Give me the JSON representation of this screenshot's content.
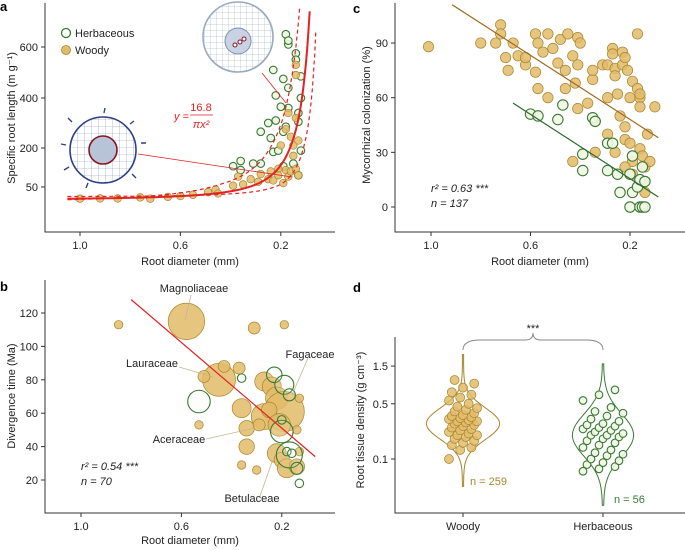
{
  "colors": {
    "woody_fill": "#e2bb68",
    "woody_stroke": "#a8852e",
    "herb_stroke": "#3a7a33",
    "herb_fill": "#f1f7e6",
    "fit_red": "#e32222",
    "woody_line": "#a0661a",
    "herb_line": "#2d6a28",
    "bracket": "#888888"
  },
  "chart_data": [
    {
      "panel": "a",
      "type": "scatter",
      "xlabel": "Root diameter (mm)",
      "ylabel": "Specific root length (m g⁻¹)",
      "x_ticks": [
        "1.0",
        "0.6",
        "0.2"
      ],
      "y_ticks": [
        "50",
        "200",
        "400",
        "600"
      ],
      "x_reversed": true,
      "legend": {
        "position": "top-left",
        "entries": [
          "Herbaceous",
          "Woody"
        ]
      },
      "equation": {
        "lhs": "y =",
        "numerator": "16.8",
        "denominator": "πx²"
      },
      "series": [
        {
          "name": "Herbaceous",
          "points": [
            [
              0.18,
              650
            ],
            [
              0.17,
              610
            ],
            [
              0.17,
              625
            ],
            [
              0.14,
              575
            ],
            [
              0.14,
              550
            ],
            [
              0.23,
              510
            ],
            [
              0.19,
              475
            ],
            [
              0.12,
              485
            ],
            [
              0.17,
              440
            ],
            [
              0.22,
              410
            ],
            [
              0.12,
              400
            ],
            [
              0.2,
              365
            ],
            [
              0.17,
              360
            ],
            [
              0.13,
              340
            ],
            [
              0.25,
              300
            ],
            [
              0.22,
              310
            ],
            [
              0.18,
              285
            ],
            [
              0.13,
              305
            ],
            [
              0.28,
              265
            ],
            [
              0.24,
              240
            ],
            [
              0.19,
              265
            ],
            [
              0.23,
              185
            ],
            [
              0.21,
              190
            ],
            [
              0.12,
              190
            ],
            [
              0.36,
              150
            ],
            [
              0.39,
              130
            ],
            [
              0.31,
              140
            ],
            [
              0.28,
              140
            ],
            [
              0.19,
              130
            ],
            [
              0.13,
              95
            ],
            [
              0.15,
              140
            ],
            [
              0.36,
              115
            ]
          ]
        },
        {
          "name": "Woody",
          "points": [
            [
              1.0,
              5
            ],
            [
              0.92,
              6
            ],
            [
              0.85,
              6
            ],
            [
              0.76,
              10
            ],
            [
              0.72,
              5
            ],
            [
              0.65,
              12
            ],
            [
              0.6,
              15
            ],
            [
              0.55,
              20
            ],
            [
              0.49,
              30
            ],
            [
              0.46,
              40
            ],
            [
              0.45,
              25
            ],
            [
              0.39,
              55
            ],
            [
              0.37,
              90
            ],
            [
              0.35,
              60
            ],
            [
              0.32,
              80
            ],
            [
              0.29,
              70
            ],
            [
              0.28,
              100
            ],
            [
              0.25,
              80
            ],
            [
              0.24,
              110
            ],
            [
              0.23,
              75
            ],
            [
              0.21,
              120
            ],
            [
              0.21,
              95
            ],
            [
              0.19,
              65
            ],
            [
              0.18,
              115
            ],
            [
              0.17,
              90
            ],
            [
              0.16,
              110
            ],
            [
              0.15,
              170
            ],
            [
              0.15,
              210
            ],
            [
              0.14,
              530
            ],
            [
              0.14,
              490
            ],
            [
              0.13,
              230
            ],
            [
              0.16,
              245
            ],
            [
              0.18,
              275
            ],
            [
              0.2,
              210
            ],
            [
              0.14,
              320
            ],
            [
              0.14,
              120
            ],
            [
              0.13,
              95
            ],
            [
              0.17,
              340
            ]
          ]
        }
      ]
    },
    {
      "panel": "b",
      "type": "scatter",
      "xlabel": "Root diameter (mm)",
      "ylabel": "Divergence time (Ma)",
      "x_ticks": [
        "1.0",
        "0.6",
        "0.2"
      ],
      "y_ticks": [
        "20",
        "40",
        "60",
        "80",
        "100",
        "120"
      ],
      "x_reversed": true,
      "stats": {
        "r2": "r² = 0.54 ***",
        "n": "n = 70"
      },
      "fit": {
        "from": [
          0.8,
          128
        ],
        "to": [
          0.067,
          34
        ]
      },
      "families": [
        "Magnoliaceae",
        "Lauraceae",
        "Fagaceae",
        "Aceraceae",
        "Betulaceae"
      ],
      "series": [
        {
          "name": "Woody",
          "points": [
            [
              0.85,
              113,
              1
            ],
            [
              0.58,
              115,
              9
            ],
            [
              0.31,
              111,
              2
            ],
            [
              0.19,
              113,
              1
            ],
            [
              0.45,
              80,
              8
            ],
            [
              0.43,
              88,
              2
            ],
            [
              0.37,
              87,
              2
            ],
            [
              0.51,
              82,
              2
            ],
            [
              0.36,
              63,
              4
            ],
            [
              0.27,
              79,
              4
            ],
            [
              0.24,
              76,
              4
            ],
            [
              0.22,
              69,
              5
            ],
            [
              0.19,
              61,
              10
            ],
            [
              0.27,
              58,
              6
            ],
            [
              0.25,
              62,
              3
            ],
            [
              0.13,
              69,
              1
            ],
            [
              0.53,
              53,
              1
            ],
            [
              0.34,
              51,
              3
            ],
            [
              0.34,
              40,
              3
            ],
            [
              0.29,
              53,
              2
            ],
            [
              0.14,
              50,
              1
            ],
            [
              0.22,
              36,
              4
            ],
            [
              0.2,
              32,
              3
            ],
            [
              0.18,
              27,
              4
            ],
            [
              0.14,
              28,
              3
            ],
            [
              0.36,
              29,
              1
            ],
            [
              0.3,
              26,
              1
            ],
            [
              0.13,
              37,
              1
            ],
            [
              0.21,
              53,
              5
            ]
          ]
        },
        {
          "name": "Herbaceous",
          "points": [
            [
              0.53,
              67,
              5
            ],
            [
              0.36,
              81,
              1
            ],
            [
              0.23,
              83,
              3
            ],
            [
              0.19,
              77,
              4
            ],
            [
              0.17,
              71,
              2
            ],
            [
              0.2,
              49,
              5
            ],
            [
              0.17,
              35,
              6
            ],
            [
              0.18,
              37,
              1
            ],
            [
              0.16,
              36,
              1
            ],
            [
              0.13,
              18,
              1
            ],
            [
              0.2,
              56,
              1
            ],
            [
              0.14,
              27,
              2
            ]
          ]
        }
      ]
    },
    {
      "panel": "c",
      "type": "scatter",
      "xlabel": "Root diameter (mm)",
      "ylabel": "Mycorrhizal colonization (%)",
      "x_ticks": [
        "1.0",
        "0.6",
        "0.2"
      ],
      "y_ticks": [
        "0",
        "30",
        "60",
        "90"
      ],
      "x_reversed": true,
      "stats": {
        "r2": "r² = 0.63 ***",
        "n": "n = 137"
      },
      "fits": [
        {
          "series": "Woody",
          "from": [
            0.915,
            111
          ],
          "to": [
            0.086,
            38
          ]
        },
        {
          "series": "Herbaceous",
          "from": [
            0.67,
            57
          ],
          "to": [
            0.086,
            5.5
          ]
        }
      ],
      "series": [
        {
          "name": "Woody",
          "points": [
            [
              1.01,
              88
            ],
            [
              0.8,
              90
            ],
            [
              0.72,
              100
            ],
            [
              0.74,
              90
            ],
            [
              0.72,
              95
            ],
            [
              0.7,
              82
            ],
            [
              0.69,
              75
            ],
            [
              0.67,
              90
            ],
            [
              0.65,
              83
            ],
            [
              0.62,
              78
            ],
            [
              0.62,
              82
            ],
            [
              0.58,
              95
            ],
            [
              0.58,
              74
            ],
            [
              0.57,
              65
            ],
            [
              0.57,
              90
            ],
            [
              0.55,
              85
            ],
            [
              0.53,
              95
            ],
            [
              0.53,
              60
            ],
            [
              0.51,
              87
            ],
            [
              0.49,
              79
            ],
            [
              0.48,
              92
            ],
            [
              0.46,
              75
            ],
            [
              0.46,
              65
            ],
            [
              0.45,
              95
            ],
            [
              0.43,
              83
            ],
            [
              0.42,
              68
            ],
            [
              0.41,
              78
            ],
            [
              0.41,
              93
            ],
            [
              0.41,
              54
            ],
            [
              0.4,
              90
            ],
            [
              0.37,
              57
            ],
            [
              0.43,
              25
            ],
            [
              0.35,
              70
            ],
            [
              0.35,
              75
            ],
            [
              0.34,
              47
            ],
            [
              0.34,
              30
            ],
            [
              0.31,
              78
            ],
            [
              0.29,
              78
            ],
            [
              0.29,
              40
            ],
            [
              0.27,
              87
            ],
            [
              0.27,
              84
            ],
            [
              0.26,
              76
            ],
            [
              0.26,
              72
            ],
            [
              0.25,
              62
            ],
            [
              0.24,
              50
            ],
            [
              0.29,
              60
            ],
            [
              0.23,
              85
            ],
            [
              0.23,
              78
            ],
            [
              0.22,
              44
            ],
            [
              0.22,
              82
            ],
            [
              0.21,
              75
            ],
            [
              0.22,
              37
            ],
            [
              0.19,
              69
            ],
            [
              0.2,
              60
            ],
            [
              0.2,
              35
            ],
            [
              0.19,
              25
            ],
            [
              0.17,
              95
            ],
            [
              0.17,
              65
            ],
            [
              0.16,
              60
            ],
            [
              0.16,
              55
            ],
            [
              0.16,
              32
            ],
            [
              0.16,
              62
            ],
            [
              0.15,
              28
            ],
            [
              0.14,
              22
            ],
            [
              0.13,
              40
            ],
            [
              0.12,
              25
            ],
            [
              0.1,
              55
            ],
            [
              0.14,
              8
            ],
            [
              0.14,
              14
            ],
            [
              0.19,
              18
            ],
            [
              0.26,
              30
            ],
            [
              0.22,
              22
            ]
          ]
        },
        {
          "name": "Herbaceous",
          "points": [
            [
              0.6,
              51
            ],
            [
              0.57,
              50
            ],
            [
              0.49,
              48
            ],
            [
              0.47,
              56
            ],
            [
              0.39,
              29
            ],
            [
              0.39,
              20
            ],
            [
              0.35,
              49
            ],
            [
              0.34,
              47
            ],
            [
              0.29,
              20
            ],
            [
              0.29,
              35
            ],
            [
              0.27,
              35
            ],
            [
              0.25,
              18
            ],
            [
              0.24,
              8
            ],
            [
              0.2,
              18
            ],
            [
              0.2,
              0
            ],
            [
              0.19,
              8
            ],
            [
              0.19,
              28
            ],
            [
              0.17,
              11
            ],
            [
              0.16,
              0
            ],
            [
              0.16,
              15
            ],
            [
              0.15,
              0
            ],
            [
              0.14,
              0
            ],
            [
              0.15,
              22
            ],
            [
              0.14,
              14
            ]
          ]
        }
      ]
    },
    {
      "panel": "d",
      "type": "violin",
      "ylabel": "Root tissue density (g cm⁻³)",
      "y_scale": "log",
      "y_ticks": [
        "0.1",
        "0.5",
        "1.5"
      ],
      "categories": [
        "Woody",
        "Herbaceous"
      ],
      "significance": "***",
      "groups": [
        {
          "name": "Woody",
          "n_label": "n = 259",
          "range": [
            0.045,
            2.1
          ],
          "values": [
            0.1,
            0.13,
            0.14,
            0.15,
            0.16,
            0.17,
            0.18,
            0.19,
            0.2,
            0.2,
            0.21,
            0.22,
            0.23,
            0.24,
            0.25,
            0.26,
            0.27,
            0.28,
            0.29,
            0.3,
            0.3,
            0.31,
            0.32,
            0.33,
            0.34,
            0.35,
            0.36,
            0.38,
            0.4,
            0.42,
            0.44,
            0.46,
            0.5,
            0.55,
            0.6,
            0.65,
            0.7,
            0.8,
            0.9,
            1.0
          ]
        },
        {
          "name": "Herbaceous",
          "n_label": "n = 56",
          "range": [
            0.026,
            1.6
          ],
          "values": [
            0.07,
            0.075,
            0.08,
            0.085,
            0.09,
            0.095,
            0.1,
            0.11,
            0.115,
            0.12,
            0.13,
            0.14,
            0.15,
            0.16,
            0.17,
            0.18,
            0.19,
            0.2,
            0.2,
            0.21,
            0.22,
            0.23,
            0.24,
            0.25,
            0.26,
            0.27,
            0.28,
            0.3,
            0.32,
            0.35,
            0.38,
            0.4,
            0.45,
            0.55,
            0.65,
            0.75
          ]
        }
      ]
    }
  ]
}
